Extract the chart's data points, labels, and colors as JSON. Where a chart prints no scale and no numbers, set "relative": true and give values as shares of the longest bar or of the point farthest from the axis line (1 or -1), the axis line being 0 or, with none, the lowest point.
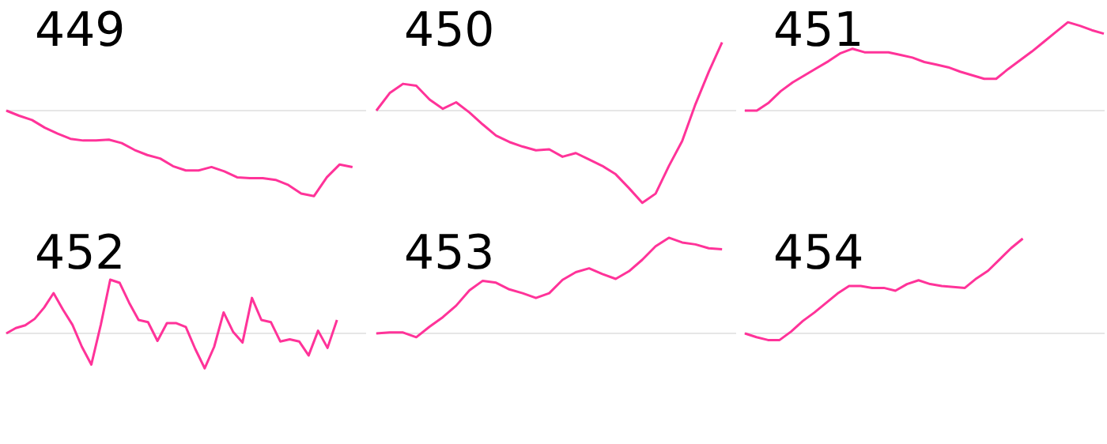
{
  "chart_data": [
    {
      "type": "line",
      "title": "449",
      "relative": true,
      "color": "#ff3399",
      "categories": [
        null,
        null,
        null,
        null,
        null,
        null,
        null,
        null,
        null,
        null,
        null,
        null,
        null,
        null,
        null,
        null,
        null,
        null,
        null,
        null,
        null,
        null,
        null,
        null,
        null,
        null,
        null,
        null,
        null
      ],
      "values": [
        0,
        -0.06,
        -0.11,
        -0.2,
        -0.27,
        -0.33,
        -0.35,
        -0.35,
        -0.34,
        -0.38,
        -0.46,
        -0.52,
        -0.56,
        -0.65,
        -0.7,
        -0.7,
        -0.66,
        -0.71,
        -0.78,
        -0.79,
        -0.79,
        -0.81,
        -0.87,
        -0.97,
        -1,
        -0.78,
        -0.63,
        -0.66,
        null
      ]
    },
    {
      "type": "line",
      "title": "450",
      "relative": true,
      "color": "#ff3399",
      "categories": [
        null,
        null,
        null,
        null,
        null,
        null,
        null,
        null,
        null,
        null,
        null,
        null,
        null,
        null,
        null,
        null,
        null,
        null,
        null,
        null,
        null,
        null,
        null,
        null,
        null,
        null,
        null,
        null
      ],
      "values": [
        0,
        0.19,
        0.29,
        0.27,
        0.12,
        0.02,
        0.09,
        -0.02,
        -0.15,
        -0.27,
        -0.34,
        -0.39,
        -0.43,
        -0.42,
        -0.5,
        -0.46,
        -0.53,
        -0.6,
        -0.69,
        -0.84,
        -1,
        -0.9,
        -0.6,
        -0.33,
        0.07,
        0.42,
        0.74,
        null
      ]
    },
    {
      "type": "line",
      "title": "451",
      "relative": true,
      "color": "#ff3399",
      "categories": [
        null,
        null,
        null,
        null,
        null,
        null,
        null,
        null,
        null,
        null,
        null,
        null,
        null,
        null,
        null,
        null,
        null,
        null,
        null,
        null,
        null,
        null,
        null,
        null,
        null,
        null,
        null,
        null,
        null,
        null,
        null
      ],
      "values": [
        0,
        0,
        0.09,
        0.22,
        0.32,
        0.4,
        0.48,
        0.56,
        0.65,
        0.7,
        0.66,
        0.66,
        0.66,
        0.63,
        0.6,
        0.55,
        0.52,
        0.49,
        0.44,
        0.4,
        0.36,
        0.36,
        0.47,
        0.57,
        0.67,
        0.78,
        0.89,
        1,
        0.96,
        0.91,
        0.87
      ]
    },
    {
      "type": "line",
      "title": "452",
      "relative": true,
      "color": "#ff3399",
      "categories": [
        null,
        null,
        null,
        null,
        null,
        null,
        null,
        null,
        null,
        null,
        null,
        null,
        null,
        null,
        null,
        null,
        null,
        null,
        null,
        null,
        null,
        null,
        null,
        null,
        null,
        null,
        null,
        null,
        null,
        null,
        null,
        null,
        null,
        null,
        null,
        null,
        null,
        null,
        null
      ],
      "values": [
        0,
        0.1,
        0.15,
        0.27,
        0.48,
        0.75,
        0.44,
        0.16,
        -0.25,
        -0.58,
        0.16,
        1,
        0.94,
        0.57,
        0.25,
        0.21,
        -0.14,
        0.19,
        0.19,
        0.12,
        -0.29,
        -0.65,
        -0.25,
        0.39,
        0.03,
        -0.17,
        0.66,
        0.25,
        0.21,
        -0.15,
        -0.11,
        -0.15,
        -0.41,
        0.05,
        -0.27,
        0.25,
        null,
        null,
        null
      ]
    },
    {
      "type": "line",
      "title": "453",
      "relative": true,
      "color": "#ff3399",
      "categories": [
        null,
        null,
        null,
        null,
        null,
        null,
        null,
        null,
        null,
        null,
        null,
        null,
        null,
        null,
        null,
        null,
        null,
        null,
        null,
        null,
        null,
        null,
        null,
        null,
        null,
        null,
        null,
        null
      ],
      "values": [
        0,
        0.01,
        0.01,
        -0.04,
        0.07,
        0.17,
        0.29,
        0.45,
        0.55,
        0.53,
        0.46,
        0.42,
        0.37,
        0.42,
        0.56,
        0.64,
        0.68,
        0.62,
        0.57,
        0.65,
        0.77,
        0.91,
        1,
        0.95,
        0.93,
        0.89,
        0.88,
        null
      ]
    },
    {
      "type": "line",
      "title": "454",
      "relative": true,
      "color": "#ff3399",
      "categories": [
        null,
        null,
        null,
        null,
        null,
        null,
        null,
        null,
        null,
        null,
        null,
        null,
        null,
        null,
        null,
        null,
        null,
        null,
        null,
        null,
        null,
        null,
        null,
        null,
        null,
        null,
        null,
        null,
        null,
        null,
        null,
        null
      ],
      "values": [
        0,
        -0.04,
        -0.07,
        -0.07,
        0.02,
        0.13,
        0.22,
        0.32,
        0.42,
        0.5,
        0.5,
        0.48,
        0.48,
        0.45,
        0.52,
        0.56,
        0.52,
        0.5,
        0.49,
        0.48,
        0.58,
        0.66,
        0.78,
        0.9,
        1,
        null,
        null,
        null,
        null,
        null,
        null,
        null
      ]
    }
  ]
}
